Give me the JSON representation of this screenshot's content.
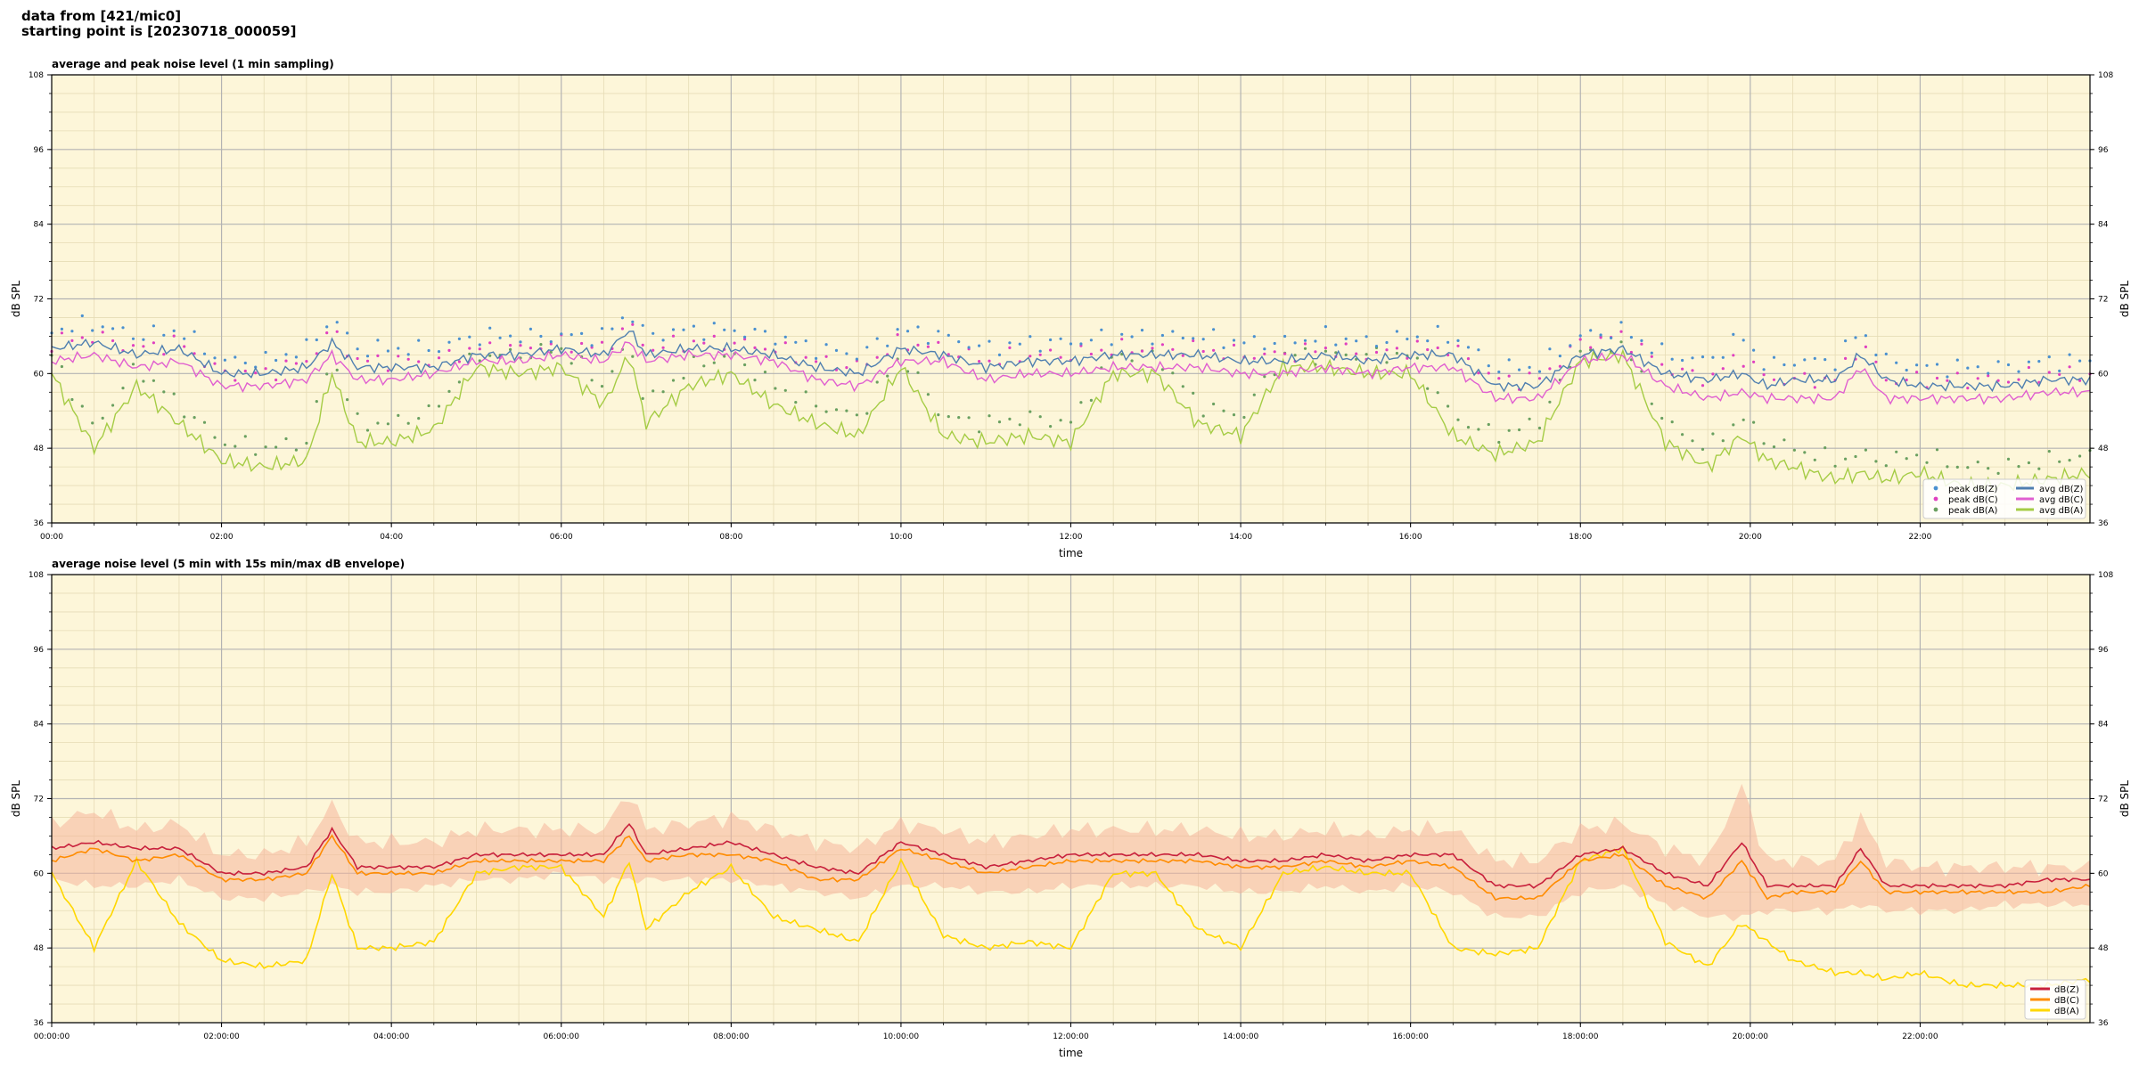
{
  "header": {
    "line1": "data from [421/mic0]",
    "line2": "starting point is [20230718_000059]"
  },
  "colors": {
    "plot_bg": "#fdf6d9",
    "dBZ_avg": "#4f7fb0",
    "dBC_avg": "#e05fd0",
    "dBA_avg": "#a5cc45",
    "dBZ_peak": "#4a90d0",
    "dBC_peak": "#e040c0",
    "dBA_peak": "#6aa060",
    "env_Z": "#c8203c",
    "env_C": "#ff8c00",
    "env_A": "#ffd700",
    "envelope_fill": "#f6b59a"
  },
  "chart_data": [
    {
      "type": "line",
      "title": "average and peak noise level (1 min sampling)",
      "xlabel": "time",
      "ylabel": "dB SPL",
      "xlim": [
        "00:00",
        "24:00"
      ],
      "ylim": [
        36,
        108
      ],
      "yticks": [
        36,
        48,
        60,
        72,
        84,
        96,
        108
      ],
      "xtick_labels": [
        "00:00",
        "02:00",
        "04:00",
        "06:00",
        "08:00",
        "10:00",
        "12:00",
        "14:00",
        "16:00",
        "18:00",
        "20:00",
        "22:00"
      ],
      "grid": true,
      "legend_position": "lower-right",
      "legend": [
        "peak dB(Z)",
        "peak dB(C)",
        "peak dB(A)",
        "avg dB(Z)",
        "avg dB(C)",
        "avg dB(A)"
      ],
      "x_hours": [
        0,
        0.5,
        1,
        1.5,
        2,
        2.5,
        3,
        3.3,
        3.6,
        4,
        4.5,
        5,
        5.5,
        6,
        6.5,
        6.8,
        7,
        7.5,
        8,
        8.5,
        9,
        9.5,
        10,
        10.5,
        11,
        11.5,
        12,
        12.5,
        13,
        13.5,
        14,
        14.5,
        15,
        15.5,
        16,
        16.5,
        17,
        17.5,
        18,
        18.5,
        19,
        19.5,
        19.9,
        20.2,
        20.5,
        21,
        21.3,
        21.6,
        22,
        22.5,
        23,
        23.5,
        24
      ],
      "series": [
        {
          "name": "avg dB(Z)",
          "values": [
            64,
            65,
            63,
            64,
            60,
            60,
            61,
            65,
            61,
            61,
            61,
            63,
            63,
            64,
            63,
            67,
            63,
            64,
            64,
            63,
            61,
            60,
            64,
            63,
            61,
            62,
            62,
            63,
            63,
            63,
            62,
            62,
            63,
            62,
            63,
            63,
            58,
            58,
            63,
            64,
            60,
            59,
            60,
            58,
            59,
            59,
            63,
            59,
            58,
            58,
            58,
            59,
            59
          ]
        },
        {
          "name": "avg dB(C)",
          "values": [
            62,
            63,
            61,
            62,
            58,
            58,
            59,
            63,
            59,
            59,
            60,
            62,
            62,
            63,
            62,
            65,
            62,
            63,
            63,
            62,
            59,
            58,
            62,
            62,
            59,
            60,
            60,
            61,
            61,
            61,
            60,
            60,
            61,
            60,
            61,
            61,
            56,
            56,
            62,
            63,
            58,
            56,
            57,
            56,
            56,
            56,
            61,
            56,
            56,
            56,
            56,
            57,
            57
          ]
        },
        {
          "name": "avg dB(A)",
          "values": [
            60,
            48,
            58,
            52,
            46,
            45,
            46,
            60,
            49,
            49,
            51,
            61,
            60,
            61,
            55,
            63,
            52,
            58,
            60,
            55,
            52,
            50,
            61,
            50,
            49,
            50,
            49,
            60,
            60,
            52,
            50,
            61,
            61,
            60,
            60,
            50,
            47,
            49,
            62,
            63,
            49,
            45,
            50,
            46,
            45,
            43,
            44,
            43,
            44,
            42,
            42,
            43,
            44
          ]
        },
        {
          "name": "peak dB(Z)",
          "values": [
            67,
            68,
            66,
            67,
            62,
            62,
            64,
            69,
            64,
            64,
            64,
            66,
            66,
            66,
            66,
            70,
            66,
            67,
            67,
            66,
            64,
            63,
            67,
            66,
            64,
            65,
            65,
            66,
            66,
            66,
            65,
            65,
            66,
            65,
            66,
            66,
            61,
            61,
            66,
            67,
            63,
            62,
            66,
            61,
            62,
            62,
            67,
            62,
            61,
            61,
            61,
            62,
            62
          ]
        },
        {
          "name": "peak dB(C)",
          "values": [
            65,
            66,
            64,
            65,
            60,
            60,
            62,
            67,
            62,
            62,
            62,
            64,
            64,
            65,
            64,
            68,
            64,
            65,
            65,
            64,
            62,
            61,
            65,
            64,
            62,
            63,
            63,
            64,
            64,
            64,
            63,
            63,
            64,
            63,
            64,
            64,
            59,
            59,
            65,
            66,
            61,
            59,
            63,
            59,
            59,
            59,
            65,
            59,
            59,
            59,
            59,
            60,
            60
          ]
        },
        {
          "name": "peak dB(A)",
          "values": [
            63,
            51,
            61,
            55,
            49,
            48,
            49,
            63,
            52,
            52,
            54,
            63,
            63,
            64,
            58,
            65,
            55,
            61,
            63,
            58,
            55,
            53,
            63,
            53,
            52,
            53,
            52,
            63,
            63,
            55,
            53,
            63,
            63,
            63,
            63,
            53,
            50,
            52,
            64,
            65,
            52,
            48,
            53,
            49,
            48,
            46,
            47,
            46,
            47,
            45,
            45,
            46,
            47
          ]
        }
      ]
    },
    {
      "type": "line",
      "title": "average noise level (5 min with 15s min/max dB envelope)",
      "xlabel": "time",
      "ylabel": "dB SPL",
      "xlim": [
        "00:00:00",
        "24:00:00"
      ],
      "ylim": [
        36,
        108
      ],
      "yticks": [
        36,
        48,
        60,
        72,
        84,
        96,
        108
      ],
      "xtick_labels": [
        "00:00:00",
        "02:00:00",
        "04:00:00",
        "06:00:00",
        "08:00:00",
        "10:00:00",
        "12:00:00",
        "14:00:00",
        "16:00:00",
        "18:00:00",
        "20:00:00",
        "22:00:00"
      ],
      "grid": true,
      "legend_position": "lower-right",
      "legend": [
        "dB(Z)",
        "dB(C)",
        "dB(A)"
      ],
      "x_hours": [
        0,
        0.5,
        1,
        1.5,
        2,
        2.5,
        3,
        3.3,
        3.6,
        4,
        4.5,
        5,
        5.5,
        6,
        6.5,
        6.8,
        7,
        7.5,
        8,
        8.5,
        9,
        9.5,
        10,
        10.5,
        11,
        11.5,
        12,
        12.5,
        13,
        13.5,
        14,
        14.5,
        15,
        15.5,
        16,
        16.5,
        17,
        17.5,
        18,
        18.5,
        19,
        19.5,
        19.9,
        20.2,
        20.5,
        21,
        21.3,
        21.6,
        22,
        22.5,
        23,
        23.5,
        24
      ],
      "envelope": {
        "max": [
          68,
          70,
          67,
          68,
          63,
          63,
          65,
          71,
          65,
          65,
          65,
          67,
          67,
          67,
          67,
          73,
          67,
          68,
          69,
          67,
          65,
          64,
          68,
          67,
          65,
          66,
          67,
          67,
          67,
          67,
          66,
          66,
          67,
          66,
          67,
          67,
          62,
          62,
          67,
          68,
          64,
          62,
          74,
          62,
          62,
          62,
          69,
          62,
          61,
          61,
          61,
          61,
          61
        ],
        "min": [
          59,
          58,
          58,
          59,
          56,
          56,
          57,
          58,
          57,
          57,
          58,
          59,
          59,
          60,
          59,
          59,
          59,
          59,
          59,
          58,
          57,
          56,
          58,
          58,
          57,
          57,
          58,
          58,
          58,
          58,
          57,
          57,
          58,
          57,
          58,
          57,
          53,
          53,
          57,
          58,
          55,
          53,
          53,
          54,
          54,
          54,
          55,
          54,
          54,
          54,
          55,
          55,
          55
        ]
      },
      "series": [
        {
          "name": "dB(Z)",
          "values": [
            64,
            65,
            64,
            64,
            60,
            60,
            61,
            67,
            61,
            61,
            61,
            63,
            63,
            63,
            63,
            68,
            63,
            64,
            65,
            63,
            61,
            60,
            65,
            63,
            61,
            62,
            63,
            63,
            63,
            63,
            62,
            62,
            63,
            62,
            63,
            63,
            58,
            58,
            63,
            64,
            60,
            58,
            65,
            58,
            58,
            58,
            64,
            58,
            58,
            58,
            58,
            59,
            59
          ]
        },
        {
          "name": "dB(C)",
          "values": [
            62,
            64,
            62,
            63,
            59,
            59,
            60,
            66,
            60,
            60,
            60,
            62,
            62,
            62,
            62,
            66,
            62,
            63,
            63,
            62,
            59,
            59,
            64,
            62,
            60,
            61,
            62,
            62,
            62,
            62,
            61,
            61,
            62,
            61,
            62,
            61,
            56,
            56,
            62,
            63,
            58,
            56,
            62,
            56,
            57,
            57,
            62,
            57,
            57,
            57,
            57,
            57,
            58
          ]
        },
        {
          "name": "dB(A)",
          "values": [
            60,
            48,
            62,
            52,
            46,
            45,
            46,
            60,
            48,
            48,
            49,
            60,
            61,
            61,
            53,
            62,
            51,
            57,
            61,
            53,
            51,
            49,
            62,
            50,
            48,
            49,
            48,
            60,
            60,
            51,
            48,
            60,
            61,
            60,
            60,
            48,
            47,
            48,
            62,
            64,
            49,
            45,
            52,
            49,
            46,
            44,
            44,
            43,
            44,
            42,
            42,
            42,
            43
          ]
        }
      ]
    }
  ]
}
